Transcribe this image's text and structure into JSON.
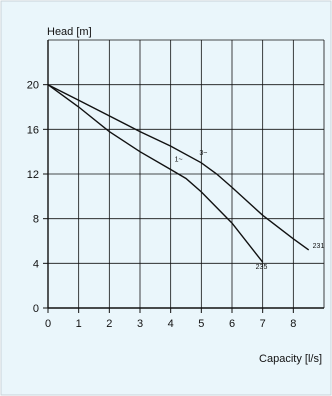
{
  "chart_data": {
    "type": "line",
    "xlabel": "Capacity [l/s]",
    "ylabel": "Head [m]",
    "xlim": [
      0,
      9
    ],
    "ylim": [
      0,
      24
    ],
    "xticks": [
      "0",
      "1",
      "2",
      "3",
      "4",
      "5",
      "6",
      "7",
      "8"
    ],
    "yticks": [
      "0",
      "4",
      "8",
      "12",
      "16",
      "20"
    ],
    "grid": true,
    "series": [
      {
        "name": "3~",
        "end_label": "231",
        "x": [
          0,
          1,
          2,
          3,
          4,
          5,
          5.5,
          6,
          7,
          8,
          8.5
        ],
        "y": [
          20,
          18.6,
          17.2,
          15.8,
          14.5,
          13,
          12,
          10.8,
          8.3,
          6.2,
          5.2
        ]
      },
      {
        "name": "1~",
        "end_label": "235",
        "x": [
          0,
          1,
          2,
          3,
          4,
          4.5,
          5,
          6,
          7
        ],
        "y": [
          20,
          18,
          15.8,
          14,
          12.4,
          11.6,
          10.4,
          7.6,
          4.1
        ]
      }
    ]
  },
  "colors": {
    "panel_background": "#eaf6fb",
    "grid": "#111111",
    "curve": "#111111"
  }
}
